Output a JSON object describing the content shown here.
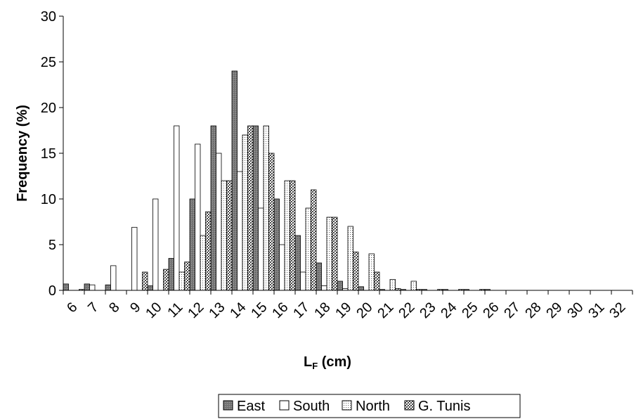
{
  "chart_data": {
    "type": "bar",
    "title": "",
    "xlabel": "L",
    "xlabel_subscript": "F",
    "xlabel_suffix": " (cm)",
    "ylabel": "Frequency (%)",
    "ylim": [
      0,
      30
    ],
    "yticks": [
      "0",
      "5",
      "10",
      "15",
      "20",
      "25",
      "30"
    ],
    "grid": false,
    "legend_position": "bottom",
    "categories": [
      "6",
      "7",
      "8",
      "9",
      "10",
      "11",
      "12",
      "13",
      "14",
      "15",
      "16",
      "17",
      "18",
      "19",
      "20",
      "21",
      "22",
      "23",
      "24",
      "25",
      "26",
      "27",
      "28",
      "29",
      "30",
      "31",
      "32"
    ],
    "series": [
      {
        "name": "East",
        "pattern": "dark-gray",
        "values": [
          0.7,
          0.7,
          0.6,
          0,
          0.5,
          3.5,
          10,
          18,
          24,
          18,
          10,
          6,
          3,
          1,
          0.4,
          0.1,
          0.1,
          0.1,
          0.1,
          0.1,
          0.1,
          0,
          0,
          0,
          0,
          0,
          0
        ]
      },
      {
        "name": "South",
        "pattern": "white",
        "values": [
          0,
          0.6,
          2.7,
          6.9,
          10,
          18,
          16,
          15,
          13,
          9,
          5,
          2,
          0.5,
          0.2,
          0,
          0,
          0,
          0,
          0,
          0,
          0,
          0,
          0,
          0,
          0,
          0,
          0
        ]
      },
      {
        "name": "North",
        "pattern": "dotted-grid",
        "values": [
          0,
          0,
          0,
          0,
          0,
          2,
          6,
          12,
          17,
          18,
          12,
          9,
          8,
          7,
          4,
          1.2,
          1,
          0,
          0,
          0,
          0,
          0,
          0,
          0,
          0,
          0,
          0
        ]
      },
      {
        "name": "G. Tunis",
        "pattern": "checkered",
        "values": [
          0.1,
          0,
          0,
          2,
          2.3,
          3.1,
          8.6,
          12,
          18,
          15,
          12,
          11,
          8,
          4.2,
          2,
          0.2,
          0.1,
          0.1,
          0.1,
          0.1,
          0,
          0,
          0,
          0,
          0,
          0,
          0
        ]
      }
    ]
  }
}
